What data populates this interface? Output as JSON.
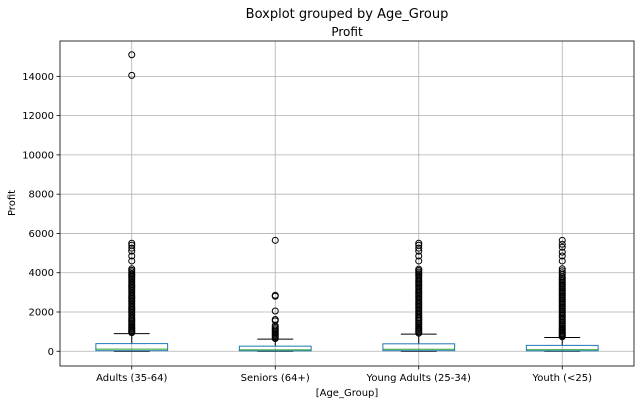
{
  "chart_data": {
    "type": "box",
    "suptitle": "Boxplot grouped by Age_Group",
    "title": "Profit",
    "xlabel": "[Age_Group]",
    "ylabel": "Profit",
    "ylim": [
      -750,
      15800
    ],
    "yticks": [
      0,
      2000,
      4000,
      6000,
      8000,
      10000,
      12000,
      14000
    ],
    "ytick_labels": [
      "0",
      "2000",
      "4000",
      "6000",
      "8000",
      "10000",
      "12000",
      "14000"
    ],
    "grid": true,
    "categories": [
      "Adults (35-64)",
      "Seniors (64+)",
      "Young Adults (25-34)",
      "Youth (<25)"
    ],
    "boxes": [
      {
        "category": "Adults (35-64)",
        "whisker_low": 0,
        "q1": 30,
        "median": 110,
        "q3": 390,
        "whisker_high": 900,
        "outliers": [
          950,
          1000,
          1060,
          1120,
          1180,
          1240,
          1300,
          1370,
          1440,
          1510,
          1580,
          1650,
          1720,
          1800,
          1880,
          1960,
          2040,
          2120,
          2200,
          2280,
          2360,
          2440,
          2520,
          2600,
          2680,
          2760,
          2840,
          2920,
          3000,
          3080,
          3160,
          3240,
          3320,
          3400,
          3480,
          3560,
          3640,
          3720,
          3800,
          3880,
          3960,
          4040,
          4120,
          4200,
          4600,
          4850,
          5100,
          5250,
          5400,
          5500,
          14050,
          15100
        ]
      },
      {
        "category": "Seniors (64+)",
        "whisker_low": 0,
        "q1": 20,
        "median": 70,
        "q3": 260,
        "whisker_high": 620,
        "outliers": [
          650,
          700,
          760,
          820,
          880,
          940,
          1000,
          1080,
          1150,
          1220,
          1300,
          1550,
          1620,
          2050,
          2800,
          2850,
          5650
        ]
      },
      {
        "category": "Young Adults (25-34)",
        "whisker_low": 0,
        "q1": 30,
        "median": 105,
        "q3": 380,
        "whisker_high": 870,
        "outliers": [
          920,
          980,
          1040,
          1100,
          1160,
          1220,
          1290,
          1360,
          1430,
          1500,
          1570,
          1640,
          1710,
          1790,
          1870,
          1950,
          2030,
          2110,
          2190,
          2270,
          2350,
          2430,
          2510,
          2590,
          2670,
          2750,
          2830,
          2910,
          2990,
          3070,
          3150,
          3230,
          3310,
          3390,
          3470,
          3550,
          3630,
          3710,
          3790,
          3870,
          3950,
          4030,
          4110,
          4180,
          4600,
          4850,
          5100,
          5250,
          5400,
          5500
        ]
      },
      {
        "category": "Youth (<25)",
        "whisker_low": 0,
        "q1": 20,
        "median": 80,
        "q3": 300,
        "whisker_high": 700,
        "outliers": [
          740,
          790,
          840,
          900,
          960,
          1020,
          1080,
          1140,
          1200,
          1270,
          1340,
          1410,
          1480,
          1550,
          1620,
          1690,
          1760,
          1830,
          1900,
          1970,
          2040,
          2110,
          2180,
          2250,
          2320,
          2390,
          2460,
          2530,
          2600,
          2670,
          2740,
          2810,
          2880,
          2950,
          3020,
          3090,
          3160,
          3230,
          3300,
          3370,
          3440,
          3510,
          3580,
          3650,
          3720,
          3790,
          3900,
          4000,
          4100,
          4200,
          4600,
          4850,
          5050,
          5300,
          5450,
          5650
        ]
      }
    ],
    "colors": {
      "box": "#1f77b4",
      "median": "#2ca02c",
      "whisker": "#000000",
      "outlier_edge": "#000000",
      "grid": "#b0b0b0",
      "axes": "#000000"
    }
  }
}
